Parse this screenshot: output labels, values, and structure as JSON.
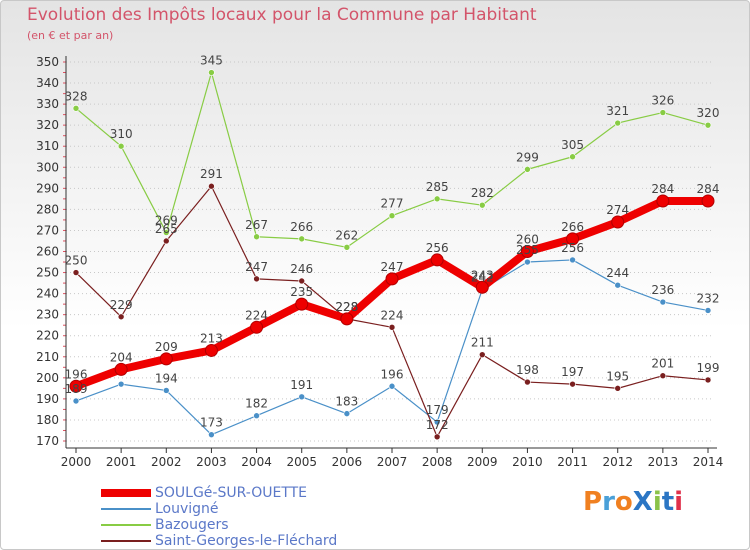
{
  "title": "Evolution des Impôts locaux pour la Commune par Habitant",
  "subtitle": "(en € et par an)",
  "brand": {
    "text": "ProXiti",
    "colors": [
      "#f08020",
      "#4aa0d8",
      "#f08020",
      "#2b76c4",
      "#8bc34a",
      "#2b76c4",
      "#e0304a"
    ]
  },
  "chart_data": {
    "type": "line",
    "title": "Evolution des Impôts locaux pour la Commune par Habitant",
    "subtitle": "(en € et par an)",
    "x": [
      "2000",
      "2001",
      "2002",
      "2003",
      "2004",
      "2005",
      "2006",
      "2007",
      "2008",
      "2009",
      "2010",
      "2011",
      "2012",
      "2013",
      "2014"
    ],
    "y_ticks": [
      "170",
      "180",
      "190",
      "200",
      "210",
      "220",
      "230",
      "240",
      "250",
      "260",
      "270",
      "280",
      "290",
      "300",
      "310",
      "320",
      "330",
      "340",
      "350"
    ],
    "ylim": [
      170,
      350
    ],
    "grid": "horizontal dotted",
    "legend_position": "bottom-left",
    "series": [
      {
        "name": "SOULGé-SUR-OUETTE",
        "color": "#ee0000",
        "width": "thick",
        "values": [
          196,
          204,
          209,
          213,
          224,
          235,
          228,
          247,
          256,
          243,
          260,
          266,
          274,
          284,
          284
        ],
        "labels": [
          "196",
          "204",
          "209",
          "213",
          "224",
          "235",
          "228",
          "247",
          "256",
          "243",
          "260",
          "266",
          "274",
          "284",
          "284"
        ]
      },
      {
        "name": "Louvigné",
        "color": "#4a90c8",
        "values": [
          189,
          197,
          194,
          173,
          182,
          191,
          183,
          196,
          179,
          242,
          255,
          256,
          244,
          236,
          232
        ],
        "labels": [
          "189",
          "",
          "194",
          "173",
          "182",
          "191",
          "183",
          "196",
          "179",
          "242",
          "255",
          "256",
          "244",
          "236",
          "232"
        ]
      },
      {
        "name": "Bazougers",
        "color": "#88cc44",
        "values": [
          328,
          310,
          269,
          345,
          267,
          266,
          262,
          277,
          285,
          282,
          299,
          305,
          321,
          326,
          320
        ],
        "labels": [
          "328",
          "310",
          "269",
          "345",
          "267",
          "266",
          "262",
          "277",
          "285",
          "282",
          "299",
          "305",
          "321",
          "326",
          "320"
        ]
      },
      {
        "name": "Saint-Georges-le-Fléchard",
        "color": "#7a1f1f",
        "values": [
          250,
          229,
          265,
          291,
          247,
          246,
          228,
          224,
          172,
          211,
          198,
          197,
          195,
          201,
          199
        ],
        "labels": [
          "250",
          "229",
          "265",
          "291",
          "247",
          "246",
          "228",
          "224",
          "172",
          "211",
          "198",
          "197",
          "195",
          "201",
          "199"
        ]
      }
    ]
  }
}
